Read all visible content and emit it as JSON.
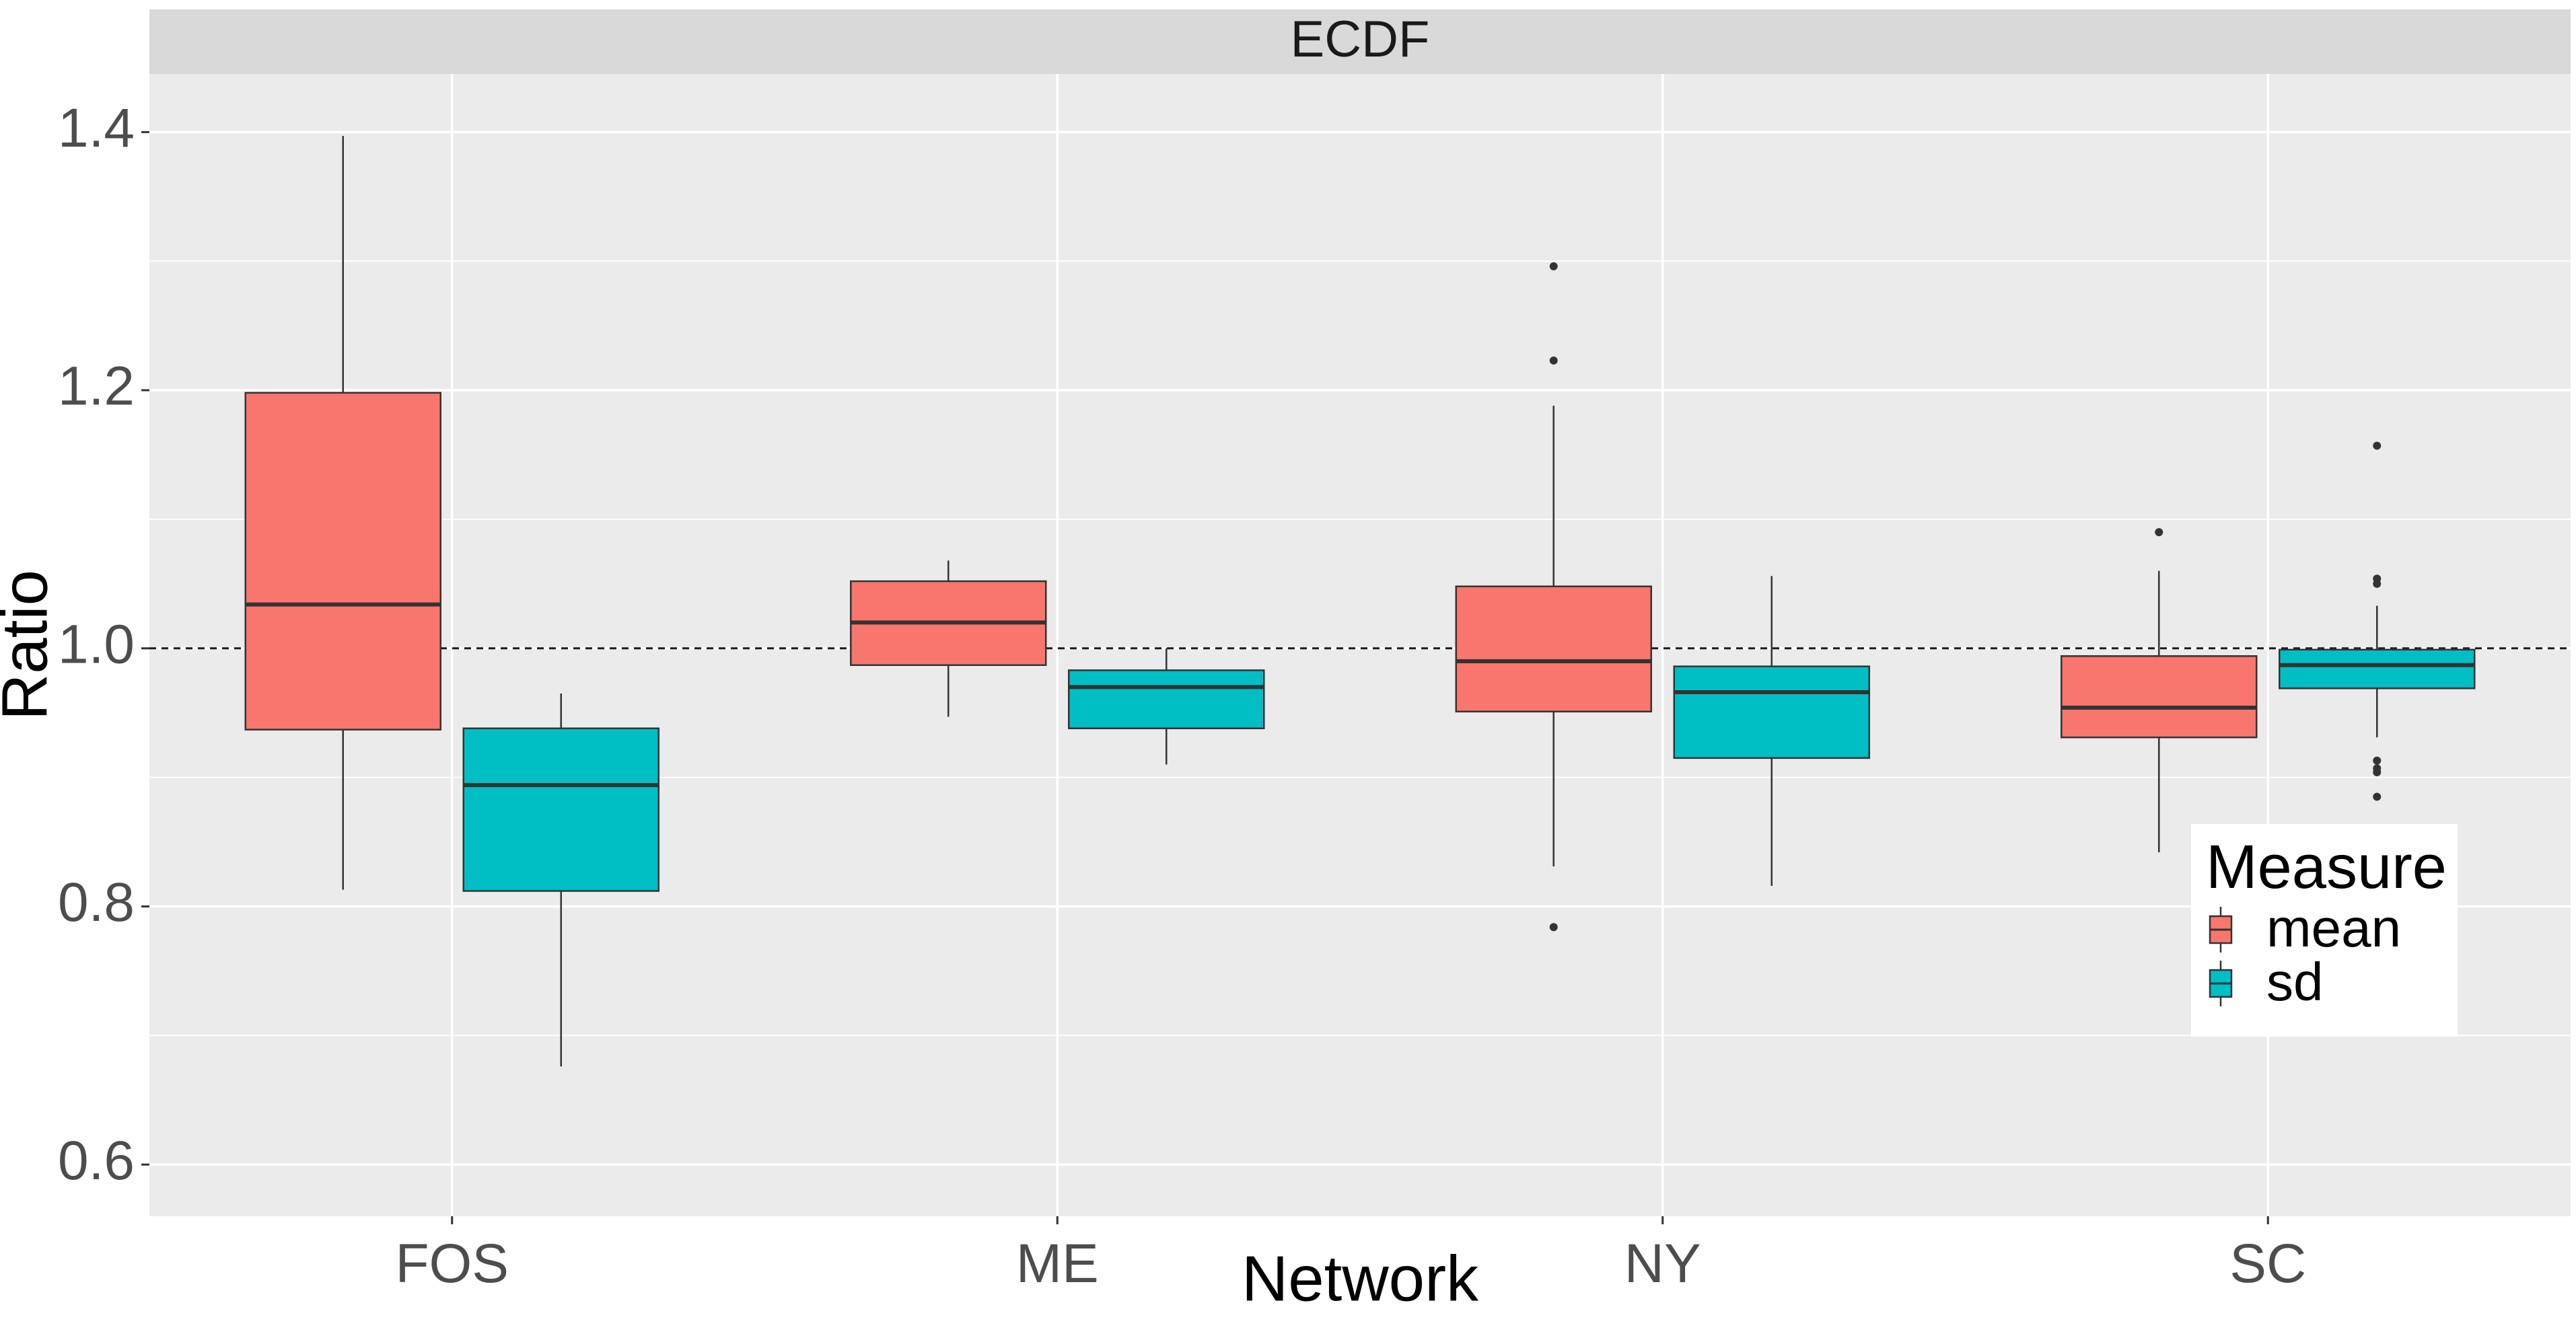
{
  "chart_data": {
    "type": "box",
    "facet": "ECDF",
    "xlabel": "Network",
    "ylabel": "Ratio",
    "ylim": [
      0.56,
      1.445
    ],
    "yticks": [
      0.6,
      0.8,
      1.0,
      1.2,
      1.4
    ],
    "ytick_labels": [
      "0.6",
      "0.8",
      "1.0",
      "1.2",
      "1.4"
    ],
    "categories": [
      "FOS",
      "ME",
      "NY",
      "SC"
    ],
    "reference_line": 1.0,
    "grid": true,
    "legend": {
      "title": "Measure",
      "position": "right-inside",
      "entries": [
        "mean",
        "sd"
      ]
    },
    "series": [
      {
        "name": "mean",
        "color": "#F8766D",
        "boxes": [
          {
            "category": "FOS",
            "whisker_low": 0.813,
            "q1": 0.937,
            "median": 1.034,
            "q3": 1.198,
            "whisker_high": 1.397,
            "outliers": []
          },
          {
            "category": "ME",
            "whisker_low": 0.947,
            "q1": 0.987,
            "median": 1.02,
            "q3": 1.052,
            "whisker_high": 1.068,
            "outliers": []
          },
          {
            "category": "NY",
            "whisker_low": 0.831,
            "q1": 0.951,
            "median": 0.99,
            "q3": 1.048,
            "whisker_high": 1.188,
            "outliers": [
              1.296,
              1.223,
              0.784
            ]
          },
          {
            "category": "SC",
            "whisker_low": 0.842,
            "q1": 0.931,
            "median": 0.954,
            "q3": 0.994,
            "whisker_high": 1.06,
            "outliers": [
              1.09
            ]
          }
        ]
      },
      {
        "name": "sd",
        "color": "#00BFC4",
        "boxes": [
          {
            "category": "FOS",
            "whisker_low": 0.676,
            "q1": 0.812,
            "median": 0.894,
            "q3": 0.938,
            "whisker_high": 0.965,
            "outliers": []
          },
          {
            "category": "ME",
            "whisker_low": 0.91,
            "q1": 0.938,
            "median": 0.97,
            "q3": 0.983,
            "whisker_high": 1.0,
            "outliers": []
          },
          {
            "category": "NY",
            "whisker_low": 0.816,
            "q1": 0.915,
            "median": 0.966,
            "q3": 0.986,
            "whisker_high": 1.056,
            "outliers": []
          },
          {
            "category": "SC",
            "whisker_low": 0.931,
            "q1": 0.969,
            "median": 0.987,
            "q3": 0.999,
            "whisker_high": 1.033,
            "outliers": [
              1.157,
              1.054,
              1.05,
              0.913,
              0.907,
              0.904,
              0.885
            ]
          }
        ]
      }
    ]
  }
}
